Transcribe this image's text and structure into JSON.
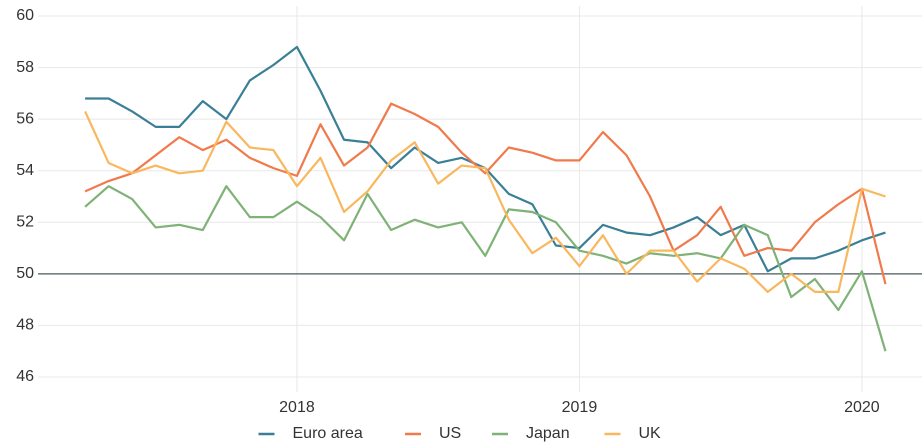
{
  "chart_data": {
    "type": "line",
    "x": [
      "2017-04",
      "2017-05",
      "2017-06",
      "2017-07",
      "2017-08",
      "2017-09",
      "2017-10",
      "2017-11",
      "2017-12",
      "2018-01",
      "2018-02",
      "2018-03",
      "2018-04",
      "2018-05",
      "2018-06",
      "2018-07",
      "2018-08",
      "2018-09",
      "2018-10",
      "2018-11",
      "2018-12",
      "2019-01",
      "2019-02",
      "2019-03",
      "2019-04",
      "2019-05",
      "2019-06",
      "2019-07",
      "2019-08",
      "2019-09",
      "2019-10",
      "2019-11",
      "2019-12",
      "2020-01",
      "2020-02"
    ],
    "series": [
      {
        "name": "Euro area",
        "color": "#3a7f96",
        "values": [
          56.8,
          56.8,
          56.3,
          55.7,
          55.7,
          56.7,
          56.0,
          57.5,
          58.1,
          58.8,
          57.1,
          55.2,
          55.1,
          54.1,
          54.9,
          54.3,
          54.5,
          54.1,
          53.1,
          52.7,
          51.1,
          51.0,
          51.9,
          51.6,
          51.5,
          51.8,
          52.2,
          51.5,
          51.9,
          50.1,
          50.6,
          50.6,
          50.9,
          51.3,
          51.6
        ]
      },
      {
        "name": "US",
        "color": "#f07a4b",
        "values": [
          53.2,
          53.6,
          53.9,
          54.6,
          55.3,
          54.8,
          55.2,
          54.5,
          54.1,
          53.8,
          55.8,
          54.2,
          54.9,
          56.6,
          56.2,
          55.7,
          54.7,
          53.9,
          54.9,
          54.7,
          54.4,
          54.4,
          55.5,
          54.6,
          53.0,
          50.9,
          51.5,
          52.6,
          50.7,
          51.0,
          50.9,
          52.0,
          52.7,
          53.3,
          49.6
        ]
      },
      {
        "name": "Japan",
        "color": "#7fb276",
        "values": [
          52.6,
          53.4,
          52.9,
          51.8,
          51.9,
          51.7,
          53.4,
          52.2,
          52.2,
          52.8,
          52.2,
          51.3,
          53.1,
          51.7,
          52.1,
          51.8,
          52.0,
          50.7,
          52.5,
          52.4,
          52.0,
          50.9,
          50.7,
          50.4,
          50.8,
          50.7,
          50.8,
          50.6,
          51.9,
          51.5,
          49.1,
          49.8,
          48.6,
          50.1,
          47.0
        ]
      },
      {
        "name": "UK",
        "color": "#f9b75e",
        "values": [
          56.3,
          54.3,
          53.9,
          54.2,
          53.9,
          54.0,
          55.9,
          54.9,
          54.8,
          53.4,
          54.5,
          52.4,
          53.2,
          54.4,
          55.1,
          53.5,
          54.2,
          54.1,
          52.1,
          50.8,
          51.4,
          50.3,
          51.5,
          50.0,
          50.9,
          50.9,
          49.7,
          50.6,
          50.2,
          49.3,
          50.0,
          49.3,
          49.3,
          53.3,
          53.0
        ]
      }
    ],
    "xlim": [
      "2017-02",
      "2020-03"
    ],
    "xticks": [
      {
        "value": "2018-01",
        "label": "2018"
      },
      {
        "value": "2019-01",
        "label": "2019"
      },
      {
        "value": "2020-01",
        "label": "2020"
      }
    ],
    "ylim": [
      46,
      60
    ],
    "yticks": [
      46,
      48,
      50,
      52,
      54,
      56,
      58,
      60
    ],
    "reference_line": 50,
    "grid": true,
    "legend": "bottom"
  }
}
